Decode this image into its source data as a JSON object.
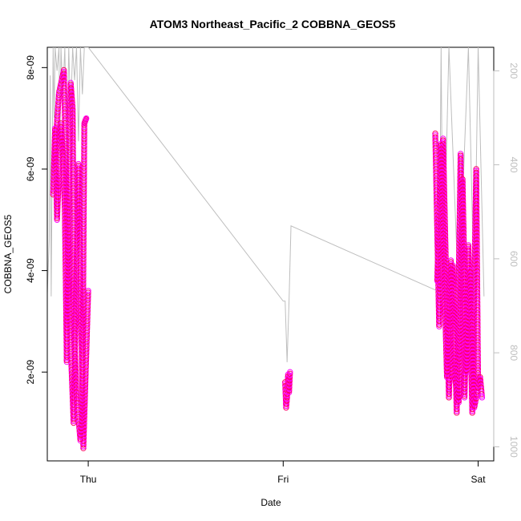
{
  "chart_data": {
    "type": "scatter",
    "title": "ATOM3 Northeast_Pacific_2 COBBNA_GEOS5",
    "xlabel": "Date",
    "ylabel": "COBBNA_GEOS5",
    "x_ticks": [
      {
        "label": "Thu",
        "value": 1.0
      },
      {
        "label": "Fri",
        "value": 2.0
      },
      {
        "label": "Sat",
        "value": 3.0
      }
    ],
    "x_range": [
      0.79,
      3.08
    ],
    "y_range": [
      2.5e-10,
      8.4e-09
    ],
    "y_ticks": [
      {
        "label": "2e-09",
        "value": 2e-09
      },
      {
        "label": "4e-09",
        "value": 4e-09
      },
      {
        "label": "6e-09",
        "value": 6e-09
      },
      {
        "label": "8e-09",
        "value": 8e-09
      }
    ],
    "y2_range": [
      1030,
      150
    ],
    "y2_ticks": [
      {
        "label": "200",
        "value": 200
      },
      {
        "label": "400",
        "value": 400
      },
      {
        "label": "600",
        "value": 600
      },
      {
        "label": "800",
        "value": 800
      },
      {
        "label": "1000",
        "value": 1000
      }
    ],
    "grid": false,
    "marker": "open-circle",
    "marker_colors": [
      "#ff00ff",
      "#ff0066"
    ],
    "secondary_line_color": "#bebebe",
    "scatter_segments": [
      {
        "x": [
          0.825,
          0.85,
          0.875,
          0.9,
          0.925,
          0.95,
          0.975,
          1.0
        ],
        "y": [
          6.1e-09,
          7.5e-09,
          7.95e-09,
          3.5e-09,
          1e-09,
          6.1e-09,
          5e-10,
          3.6e-09
        ]
      },
      {
        "x": [
          0.82,
          0.83,
          0.84,
          0.86,
          0.87,
          0.88,
          0.89,
          0.91,
          0.92,
          0.93,
          0.94,
          0.96,
          0.97,
          0.98,
          0.99
        ],
        "y": [
          5.5e-09,
          6.8e-09,
          5e-09,
          6.9e-09,
          6.3e-09,
          5.2e-09,
          2.2e-09,
          7.7e-09,
          7.2e-09,
          2.6e-09,
          1.5e-09,
          6.5e-10,
          1.2e-09,
          6.9e-09,
          7e-09
        ]
      },
      {
        "x": [
          2.01,
          2.015,
          2.02,
          2.025,
          2.03,
          2.035
        ],
        "y": [
          1.8e-09,
          1.3e-09,
          1.5e-09,
          1.95e-09,
          1.6e-09,
          2e-09
        ]
      },
      {
        "x": [
          2.78,
          2.8,
          2.82,
          2.85,
          2.87,
          2.89,
          2.91,
          2.93,
          2.95,
          2.97,
          2.99,
          3.0
        ],
        "y": [
          6.7e-09,
          2.9e-09,
          6.6e-09,
          1.5e-09,
          4.1e-09,
          1.2e-09,
          6.3e-09,
          1.5e-09,
          4.5e-09,
          1.2e-09,
          6e-09,
          1.7e-09
        ]
      },
      {
        "x": [
          2.79,
          2.81,
          2.83,
          2.84,
          2.86,
          2.88,
          2.9,
          2.92,
          2.94,
          2.96,
          2.98,
          3.01,
          3.02
        ],
        "y": [
          3.8e-09,
          6.5e-09,
          3.3e-09,
          1.9e-09,
          4.2e-09,
          1.9e-09,
          1.4e-09,
          5.8e-09,
          2e-09,
          4e-09,
          1.3e-09,
          1.9e-09,
          1.5e-09
        ]
      }
    ],
    "secondary_line": {
      "x": [
        0.79,
        0.8,
        0.805,
        0.81,
        0.82,
        0.825,
        0.83,
        0.84,
        0.85,
        0.855,
        0.86,
        0.87,
        0.88,
        0.89,
        0.9,
        0.91,
        0.92,
        0.93,
        0.94,
        0.95,
        0.96,
        0.97,
        0.98,
        1.0,
        2.0,
        2.01,
        2.02,
        2.03,
        2.04,
        2.8,
        2.81,
        2.82,
        2.85,
        2.9,
        2.95,
        2.98,
        3.0,
        3.03
      ],
      "y": [
        675,
        560,
        210,
        680,
        150,
        300,
        150,
        200,
        150,
        400,
        150,
        250,
        150,
        400,
        150,
        300,
        150,
        220,
        150,
        350,
        150,
        250,
        150,
        150,
        690,
        690,
        820,
        690,
        530,
        670,
        150,
        690,
        150,
        690,
        150,
        690,
        150,
        680
      ]
    }
  }
}
